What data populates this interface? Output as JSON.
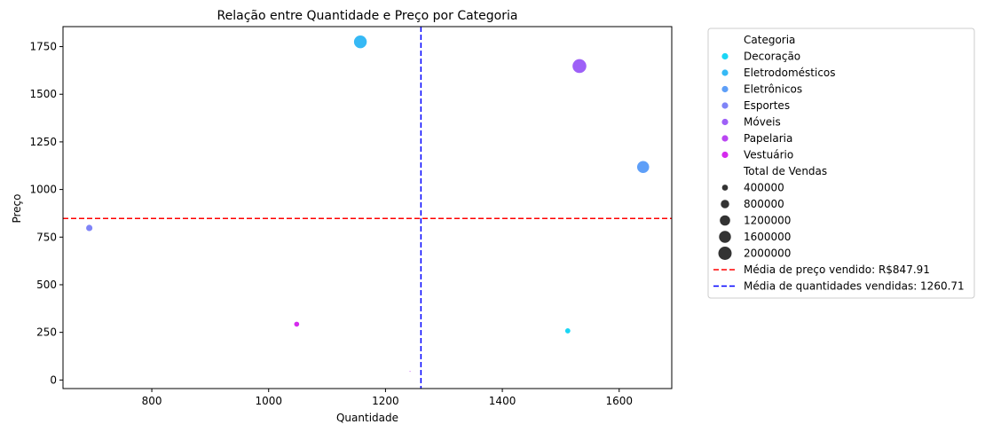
{
  "chart_data": {
    "type": "scatter",
    "title": "Relação entre Quantidade e Preço por Categoria",
    "xlabel": "Quantidade",
    "ylabel": "Preço",
    "xlim": [
      648,
      1690
    ],
    "ylim": [
      -45,
      1855
    ],
    "xticks": [
      800,
      1000,
      1200,
      1400,
      1600
    ],
    "yticks": [
      0,
      250,
      500,
      750,
      1000,
      1250,
      1500,
      1750
    ],
    "grid": false,
    "legend_position": "outside-right",
    "legend": {
      "hue_title": "Categoria",
      "size_title": "Total de Vendas",
      "size_entries": [
        {
          "label": "400000",
          "value": 400000
        },
        {
          "label": "800000",
          "value": 800000
        },
        {
          "label": "1200000",
          "value": 1200000
        },
        {
          "label": "1600000",
          "value": 1600000
        },
        {
          "label": "2000000",
          "value": 2000000
        }
      ]
    },
    "series": [
      {
        "name": "Decoração",
        "color": "#1ad6f5",
        "points": [
          {
            "x": 1512,
            "y": 258,
            "size": 390000
          }
        ]
      },
      {
        "name": "Eletrodomésticos",
        "color": "#36b9f5",
        "points": [
          {
            "x": 1157,
            "y": 1775,
            "size": 2050000
          }
        ]
      },
      {
        "name": "Eletrônicos",
        "color": "#5e9ff8",
        "points": [
          {
            "x": 1641,
            "y": 1118,
            "size": 1830000
          }
        ]
      },
      {
        "name": "Esportes",
        "color": "#7f84f7",
        "points": [
          {
            "x": 693,
            "y": 798,
            "size": 560000
          }
        ]
      },
      {
        "name": "Móveis",
        "color": "#9e60f7",
        "points": [
          {
            "x": 1532,
            "y": 1648,
            "size": 2380000
          }
        ]
      },
      {
        "name": "Papelaria",
        "color": "#ba46f2",
        "points": [
          {
            "x": 1242,
            "y": 45,
            "size": 30000
          }
        ]
      },
      {
        "name": "Vestuário",
        "color": "#d52aee",
        "points": [
          {
            "x": 1048,
            "y": 293,
            "size": 370000
          }
        ]
      }
    ],
    "reference_lines": [
      {
        "orientation": "horizontal",
        "value": 847.91,
        "color": "#ff0000",
        "label": "Média de preço vendido: R$847.91"
      },
      {
        "orientation": "vertical",
        "value": 1260.71,
        "color": "#0000ff",
        "label": "Média de quantidades vendidas: 1260.71"
      }
    ]
  }
}
